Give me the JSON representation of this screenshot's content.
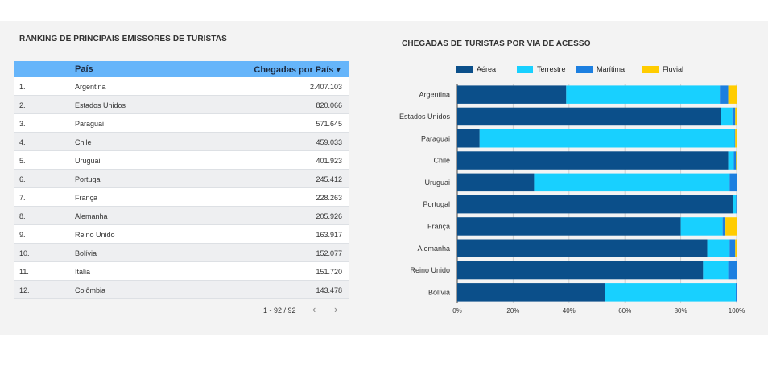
{
  "table": {
    "title": "RANKING DE PRINCIPAIS EMISSORES DE TURISTAS",
    "columns": [
      "País",
      "Chegadas por País ▾"
    ],
    "rows": [
      {
        "rank": "1.",
        "pais": "Argentina",
        "chegadas": "2.407.103"
      },
      {
        "rank": "2.",
        "pais": "Estados Unidos",
        "chegadas": "820.066"
      },
      {
        "rank": "3.",
        "pais": "Paraguai",
        "chegadas": "571.645"
      },
      {
        "rank": "4.",
        "pais": "Chile",
        "chegadas": "459.033"
      },
      {
        "rank": "5.",
        "pais": "Uruguai",
        "chegadas": "401.923"
      },
      {
        "rank": "6.",
        "pais": "Portugal",
        "chegadas": "245.412"
      },
      {
        "rank": "7.",
        "pais": "França",
        "chegadas": "228.263"
      },
      {
        "rank": "8.",
        "pais": "Alemanha",
        "chegadas": "205.926"
      },
      {
        "rank": "9.",
        "pais": "Reino Unido",
        "chegadas": "163.917"
      },
      {
        "rank": "10.",
        "pais": "Bolívia",
        "chegadas": "152.077"
      },
      {
        "rank": "11.",
        "pais": "Itália",
        "chegadas": "151.720"
      },
      {
        "rank": "12.",
        "pais": "Colômbia",
        "chegadas": "143.478"
      }
    ],
    "pagination": "1 - 92 / 92",
    "prev_glyph": "‹",
    "next_glyph": "›"
  },
  "chart_data": {
    "type": "bar",
    "orientation": "horizontal",
    "stacked": "percent",
    "title": "CHEGADAS DE TURISTAS POR VIA DE ACESSO",
    "categories": [
      "Argentina",
      "Estados Unidos",
      "Paraguai",
      "Chile",
      "Uruguai",
      "Portugal",
      "França",
      "Alemanha",
      "Reino Unido",
      "Bolívia"
    ],
    "series": [
      {
        "name": "Aérea",
        "color": "#0b4f8a",
        "values": [
          39,
          94.5,
          8,
          97,
          27.5,
          98.8,
          80,
          89.5,
          88,
          53
        ]
      },
      {
        "name": "Terrestre",
        "color": "#18d0ff",
        "values": [
          55,
          4,
          91.3,
          2,
          70,
          1,
          15,
          8,
          9,
          46.7
        ]
      },
      {
        "name": "Marítima",
        "color": "#1c7fe0",
        "values": [
          3,
          1,
          0.2,
          0.8,
          2.5,
          0.2,
          1,
          2,
          3,
          0.3
        ]
      },
      {
        "name": "Fluvial",
        "color": "#ffcc00",
        "values": [
          3,
          0.5,
          0.5,
          0.2,
          0,
          0,
          4,
          0.5,
          0,
          0
        ]
      }
    ],
    "x_ticks": [
      "0%",
      "20%",
      "40%",
      "60%",
      "80%",
      "100%"
    ],
    "xlim": [
      0,
      100
    ],
    "legend": "top",
    "grid": true
  }
}
